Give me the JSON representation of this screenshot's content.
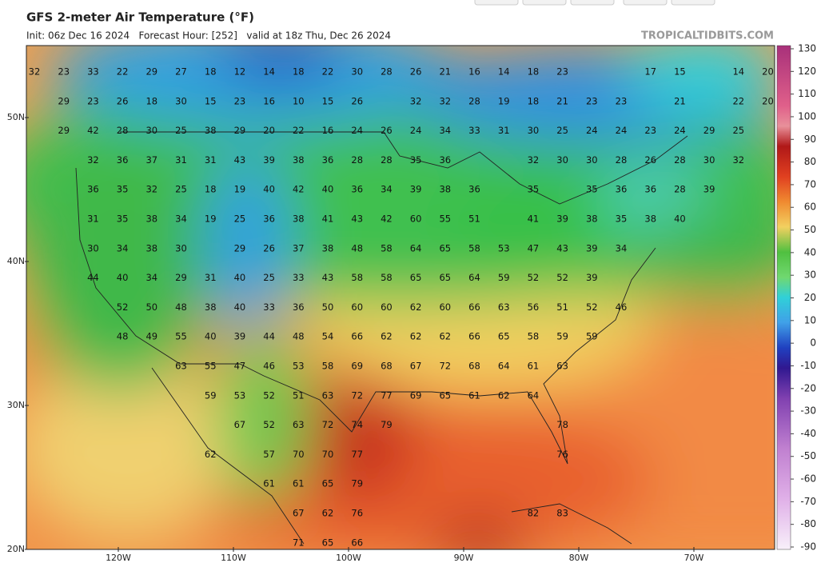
{
  "header": {
    "title": "GFS 2-meter Air Temperature (°F)",
    "subtitle": "Init: 06z Dec 16 2024   Forecast Hour: [252]   valid at 18z Thu, Dec 26 2024",
    "source": "TROPICALTIDBITS.COM"
  },
  "map": {
    "lat_labels": [
      "50N",
      "40N",
      "30N",
      "20N"
    ],
    "lon_labels": [
      "120W",
      "110W",
      "100W",
      "90W",
      "80W",
      "70W"
    ],
    "temperature_rows": [
      [
        32,
        23,
        33,
        22,
        29,
        27,
        18,
        12,
        14,
        18,
        22,
        30,
        28,
        26,
        21,
        16,
        14,
        18,
        23,
        null,
        null,
        17,
        15,
        null,
        14,
        20
      ],
      [
        null,
        29,
        23,
        26,
        18,
        30,
        15,
        23,
        16,
        10,
        15,
        26,
        null,
        32,
        32,
        28,
        19,
        18,
        21,
        23,
        23,
        null,
        21,
        null,
        22,
        20
      ],
      [
        null,
        29,
        42,
        28,
        30,
        25,
        38,
        29,
        20,
        22,
        16,
        24,
        26,
        24,
        34,
        33,
        31,
        30,
        25,
        24,
        24,
        23,
        24,
        29,
        25,
        null
      ],
      [
        null,
        null,
        32,
        36,
        37,
        31,
        31,
        43,
        39,
        38,
        36,
        28,
        28,
        35,
        36,
        null,
        null,
        32,
        30,
        30,
        28,
        26,
        28,
        30,
        32,
        null
      ],
      [
        null,
        null,
        36,
        35,
        32,
        25,
        18,
        19,
        40,
        42,
        40,
        36,
        34,
        39,
        38,
        36,
        null,
        35,
        null,
        35,
        36,
        36,
        28,
        39,
        null,
        null
      ],
      [
        null,
        null,
        31,
        35,
        38,
        34,
        19,
        25,
        36,
        38,
        41,
        43,
        42,
        60,
        55,
        51,
        null,
        41,
        39,
        38,
        35,
        38,
        40,
        null,
        null,
        null
      ],
      [
        null,
        null,
        30,
        34,
        38,
        30,
        null,
        29,
        26,
        37,
        38,
        48,
        58,
        64,
        65,
        58,
        53,
        47,
        43,
        39,
        34,
        null,
        null,
        null,
        null,
        null
      ],
      [
        null,
        null,
        44,
        40,
        34,
        29,
        31,
        40,
        25,
        33,
        43,
        58,
        58,
        65,
        65,
        64,
        59,
        52,
        52,
        39,
        null,
        null,
        null,
        null,
        null,
        null
      ],
      [
        null,
        null,
        null,
        52,
        50,
        48,
        38,
        40,
        33,
        36,
        50,
        60,
        60,
        62,
        60,
        66,
        63,
        56,
        51,
        52,
        46,
        null,
        null,
        null,
        null,
        null
      ],
      [
        null,
        null,
        null,
        48,
        49,
        55,
        40,
        39,
        44,
        48,
        54,
        66,
        62,
        62,
        62,
        66,
        65,
        58,
        59,
        59,
        null,
        null,
        null,
        null,
        null,
        null
      ],
      [
        null,
        null,
        null,
        null,
        null,
        63,
        55,
        47,
        46,
        53,
        58,
        69,
        68,
        67,
        72,
        68,
        64,
        61,
        63,
        null,
        null,
        null,
        null,
        null,
        null,
        null
      ],
      [
        null,
        null,
        null,
        null,
        null,
        null,
        59,
        53,
        52,
        51,
        63,
        72,
        77,
        69,
        65,
        61,
        62,
        64,
        null,
        null,
        null,
        null,
        null,
        null,
        null,
        null
      ],
      [
        null,
        null,
        null,
        null,
        null,
        null,
        null,
        67,
        52,
        63,
        72,
        74,
        79,
        null,
        null,
        null,
        null,
        null,
        78,
        null,
        null,
        null,
        null,
        null,
        null,
        null
      ],
      [
        null,
        null,
        null,
        null,
        null,
        null,
        62,
        null,
        57,
        70,
        70,
        77,
        null,
        null,
        null,
        null,
        null,
        null,
        76,
        null,
        null,
        null,
        null,
        null,
        null,
        null
      ],
      [
        null,
        null,
        null,
        null,
        null,
        null,
        null,
        null,
        61,
        61,
        65,
        79,
        null,
        null,
        null,
        null,
        null,
        null,
        null,
        null,
        null,
        null,
        null,
        null,
        null,
        null
      ],
      [
        null,
        null,
        null,
        null,
        null,
        null,
        null,
        null,
        null,
        67,
        62,
        76,
        null,
        null,
        null,
        null,
        null,
        82,
        83,
        null,
        null,
        null,
        null,
        null,
        null,
        null
      ],
      [
        null,
        null,
        null,
        null,
        null,
        null,
        null,
        null,
        null,
        71,
        65,
        66,
        null,
        null,
        null,
        null,
        null,
        null,
        null,
        null,
        null,
        null,
        null,
        null,
        null,
        null
      ]
    ]
  },
  "colorbar": {
    "ticks": [
      130,
      120,
      110,
      100,
      90,
      80,
      70,
      60,
      50,
      40,
      30,
      20,
      10,
      0,
      -10,
      -20,
      -30,
      -40,
      -50,
      -60,
      -70,
      -80,
      -90
    ]
  }
}
